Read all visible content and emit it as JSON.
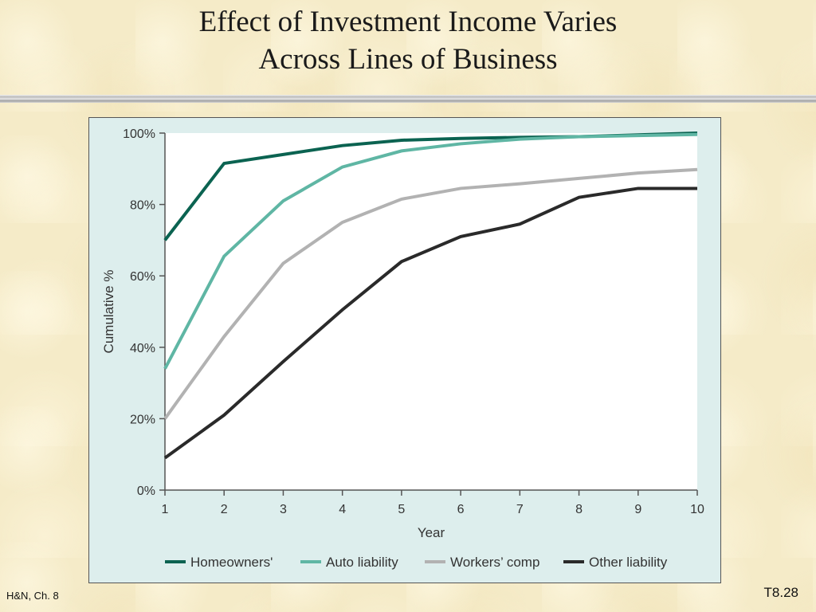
{
  "slide": {
    "title_line1": "Effect of Investment Income Varies",
    "title_line2": "Across Lines of Business",
    "footer_left": "H&N, Ch. 8",
    "footer_right": "T8.28"
  },
  "chart_data": {
    "type": "line",
    "title": "",
    "xlabel": "Year",
    "ylabel": "Cumulative %",
    "x": [
      1,
      2,
      3,
      4,
      5,
      6,
      7,
      8,
      9,
      10
    ],
    "xlim": [
      1,
      10
    ],
    "ylim": [
      0,
      100
    ],
    "yticks": [
      0,
      20,
      40,
      60,
      80,
      100
    ],
    "ytick_labels": [
      "0%",
      "20%",
      "40%",
      "60%",
      "80%",
      "100%"
    ],
    "grid": false,
    "legend_position": "bottom",
    "series": [
      {
        "name": "Homeowners'",
        "color": "#0b6351",
        "values": [
          70,
          91.5,
          94,
          96.5,
          98,
          98.5,
          98.8,
          99,
          99.5,
          100
        ]
      },
      {
        "name": "Auto liability",
        "color": "#5fb6a4",
        "values": [
          34,
          65.5,
          81,
          90.5,
          95,
          97,
          98.3,
          99,
          99.3,
          99.6
        ]
      },
      {
        "name": "Workers’ comp",
        "color": "#b2b2b2",
        "values": [
          20,
          43,
          63.5,
          75,
          81.5,
          84.5,
          85.8,
          87.3,
          88.8,
          89.8
        ]
      },
      {
        "name": "Other liability",
        "color": "#2a2a2a",
        "values": [
          9,
          21,
          36,
          50.5,
          64,
          71,
          74.5,
          82,
          84.5,
          84.5
        ]
      }
    ]
  }
}
